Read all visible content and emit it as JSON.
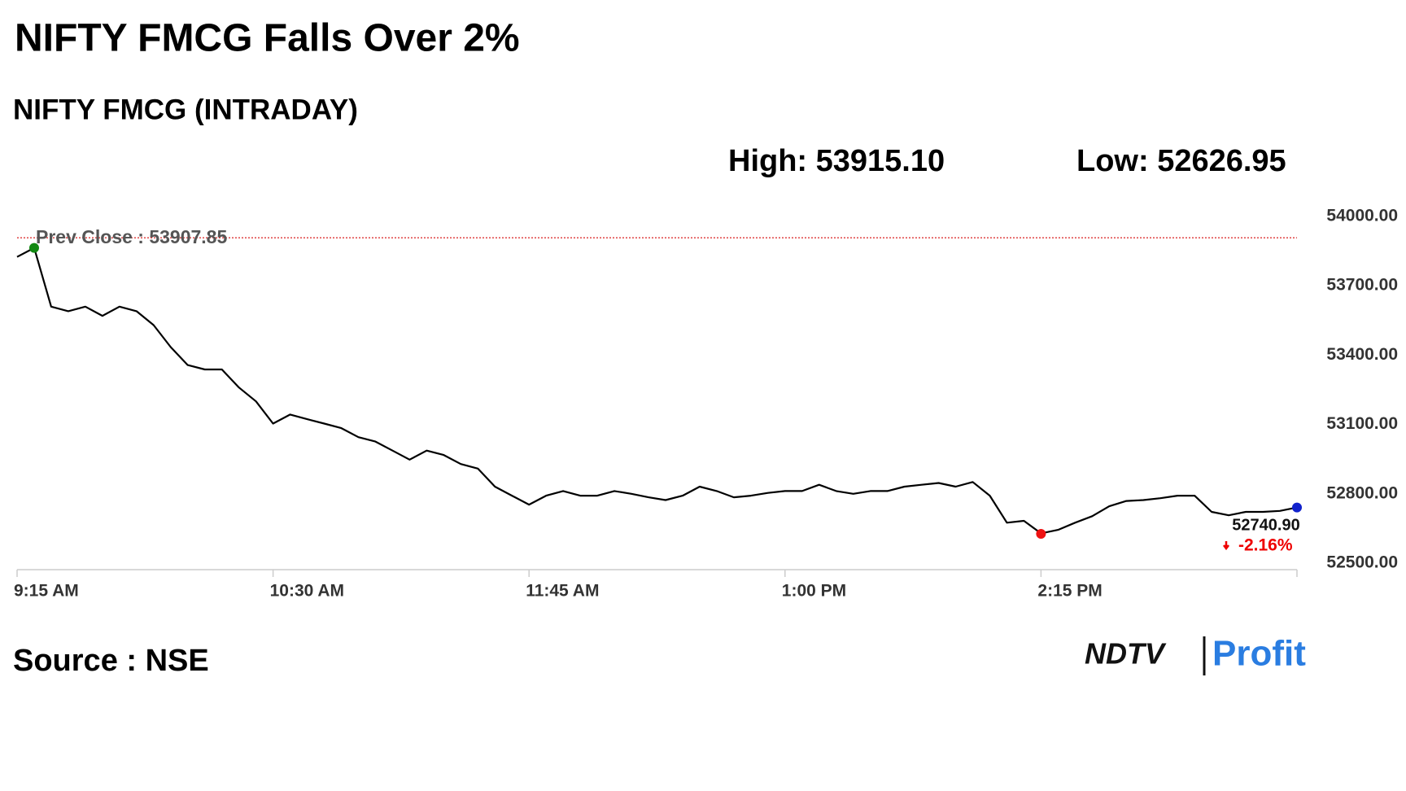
{
  "chart_data": {
    "type": "line",
    "title": "NIFTY FMCG Falls Over 2%",
    "subtitle": "NIFTY FMCG (INTRADAY)",
    "high": {
      "value": 53915.1,
      "label": "High: 53915.10"
    },
    "low": {
      "value": 52626.95,
      "label": "Low: 52626.95"
    },
    "prev_close": {
      "value": 53907.85,
      "label": "Prev Close : 53907.85"
    },
    "last": {
      "value": 52740.9,
      "label": "52740.90"
    },
    "change": {
      "value": -2.16,
      "label": "-2.16%"
    },
    "x": [
      "9:15 AM",
      "9:20 AM",
      "9:25 AM",
      "9:30 AM",
      "9:35 AM",
      "9:40 AM",
      "9:45 AM",
      "9:50 AM",
      "9:55 AM",
      "10:00 AM",
      "10:05 AM",
      "10:10 AM",
      "10:15 AM",
      "10:20 AM",
      "10:25 AM",
      "10:30 AM",
      "10:35 AM",
      "10:40 AM",
      "10:45 AM",
      "10:50 AM",
      "10:55 AM",
      "11:00 AM",
      "11:05 AM",
      "11:10 AM",
      "11:15 AM",
      "11:20 AM",
      "11:25 AM",
      "11:30 AM",
      "11:35 AM",
      "11:40 AM",
      "11:45 AM",
      "11:50 AM",
      "11:55 AM",
      "12:00 PM",
      "12:05 PM",
      "12:10 PM",
      "12:15 PM",
      "12:20 PM",
      "12:25 PM",
      "12:30 PM",
      "12:35 PM",
      "12:40 PM",
      "12:45 PM",
      "12:50 PM",
      "12:55 PM",
      "1:00 PM",
      "1:05 PM",
      "1:10 PM",
      "1:15 PM",
      "1:20 PM",
      "1:25 PM",
      "1:30 PM",
      "1:35 PM",
      "1:40 PM",
      "1:45 PM",
      "1:50 PM",
      "1:55 PM",
      "2:00 PM",
      "2:05 PM",
      "2:10 PM",
      "2:15 PM",
      "2:20 PM",
      "2:25 PM",
      "2:30 PM",
      "2:35 PM",
      "2:40 PM",
      "2:45 PM",
      "2:50 PM",
      "2:55 PM",
      "3:00 PM",
      "3:05 PM",
      "3:10 PM",
      "3:15 PM",
      "3:20 PM",
      "3:25 PM",
      "3:30 PM"
    ],
    "values": [
      53825,
      53864,
      53610,
      53590,
      53610,
      53570,
      53610,
      53590,
      53530,
      53435,
      53357,
      53338,
      53338,
      53260,
      53200,
      53104,
      53143,
      53123,
      53104,
      53084,
      53045,
      53026,
      52987,
      52948,
      52987,
      52968,
      52929,
      52909,
      52831,
      52792,
      52753,
      52792,
      52812,
      52792,
      52792,
      52812,
      52800,
      52785,
      52773,
      52792,
      52831,
      52812,
      52785,
      52792,
      52804,
      52812,
      52812,
      52839,
      52812,
      52800,
      52812,
      52812,
      52831,
      52839,
      52847,
      52831,
      52851,
      52792,
      52675,
      52683,
      52629,
      52644,
      52675,
      52703,
      52746,
      52769,
      52773,
      52781,
      52792,
      52792,
      52722,
      52707,
      52722,
      52722,
      52726,
      52740.9
    ],
    "color": "#000000",
    "xlim": [
      "9:15 AM",
      "3:30 PM"
    ],
    "xticks": [
      "9:15 AM",
      "10:30 AM",
      "11:45 AM",
      "1:00 PM",
      "2:15 PM"
    ],
    "ylim": [
      52500,
      54000
    ],
    "yticks": [
      {
        "value": 52500,
        "label": "52500.00"
      },
      {
        "value": 52800,
        "label": "52800.00"
      },
      {
        "value": 53100,
        "label": "53100.00"
      },
      {
        "value": 53400,
        "label": "53400.00"
      },
      {
        "value": 53700,
        "label": "53700.00"
      },
      {
        "value": 54000,
        "label": "54000.00"
      }
    ],
    "source": "Source : NSE",
    "logo": {
      "brand": "NDTV",
      "product": "Profit"
    }
  }
}
